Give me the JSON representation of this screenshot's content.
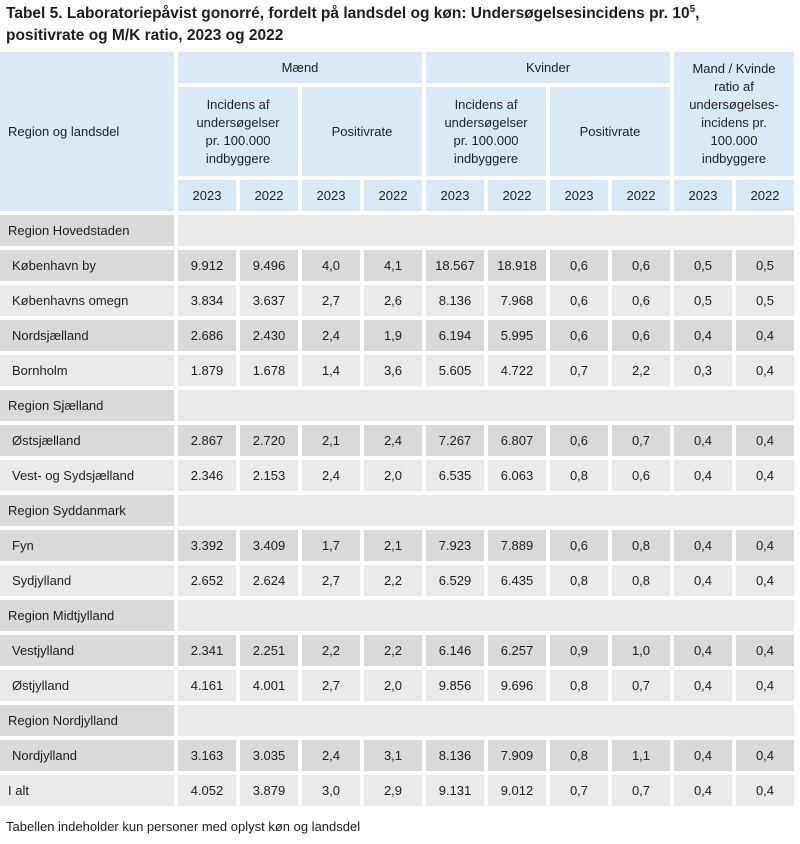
{
  "title_main": "Tabel 5. Laboratoriepåvist gonorré, fordelt på landsdel og køn: Undersøgelsesincidens pr. 10",
  "title_sup": "5",
  "title_rest": ",",
  "title_line2": "positivrate og M/K ratio, 2023 og 2022",
  "headers": {
    "region": "Region og landsdel",
    "maend": "Mænd",
    "kvinder": "Kvinder",
    "ratio": "Mand / Kvinde ratio af undersøgelses-incidens pr. 100.000 indbyggere",
    "incidens": "Incidens af undersøgelser pr. 100.000 indbyggere",
    "positivrate": "Positivrate",
    "years": [
      "2023",
      "2022",
      "2023",
      "2022",
      "2023",
      "2022",
      "2023",
      "2022",
      "2023",
      "2022"
    ]
  },
  "rows": [
    {
      "type": "region",
      "label": "Region Hovedstaden"
    },
    {
      "type": "data",
      "shade": "g",
      "label": "København by",
      "v": [
        "9.912",
        "9.496",
        "4,0",
        "4,1",
        "18.567",
        "18.918",
        "0,6",
        "0,6",
        "0,5",
        "0,5"
      ]
    },
    {
      "type": "data",
      "shade": "w",
      "label": "Københavns omegn",
      "v": [
        "3.834",
        "3.637",
        "2,7",
        "2,6",
        "8.136",
        "7.968",
        "0,6",
        "0,6",
        "0,5",
        "0,5"
      ]
    },
    {
      "type": "data",
      "shade": "g",
      "label": "Nordsjælland",
      "v": [
        "2.686",
        "2.430",
        "2,4",
        "1,9",
        "6.194",
        "5.995",
        "0,6",
        "0,6",
        "0,4",
        "0,4"
      ]
    },
    {
      "type": "data",
      "shade": "w",
      "label": "Bornholm",
      "v": [
        "1.879",
        "1.678",
        "1,4",
        "3,6",
        "5.605",
        "4.722",
        "0,7",
        "2,2",
        "0,3",
        "0,4"
      ]
    },
    {
      "type": "region",
      "label": "Region Sjælland"
    },
    {
      "type": "data",
      "shade": "g",
      "label": "Østsjælland",
      "v": [
        "2.867",
        "2.720",
        "2,1",
        "2,4",
        "7.267",
        "6.807",
        "0,6",
        "0,7",
        "0,4",
        "0,4"
      ]
    },
    {
      "type": "data",
      "shade": "w",
      "label": "Vest- og Sydsjælland",
      "v": [
        "2.346",
        "2.153",
        "2,4",
        "2,0",
        "6.535",
        "6.063",
        "0,8",
        "0,6",
        "0,4",
        "0,4"
      ]
    },
    {
      "type": "region",
      "label": "Region Syddanmark"
    },
    {
      "type": "data",
      "shade": "g",
      "label": "Fyn",
      "v": [
        "3.392",
        "3.409",
        "1,7",
        "2,1",
        "7.923",
        "7.889",
        "0,6",
        "0,8",
        "0,4",
        "0,4"
      ]
    },
    {
      "type": "data",
      "shade": "w",
      "label": "Sydjylland",
      "v": [
        "2.652",
        "2.624",
        "2,7",
        "2,2",
        "6.529",
        "6.435",
        "0,8",
        "0,8",
        "0,4",
        "0,4"
      ]
    },
    {
      "type": "region",
      "label": "Region Midtjylland"
    },
    {
      "type": "data",
      "shade": "g",
      "label": "Vestjylland",
      "v": [
        "2.341",
        "2.251",
        "2,2",
        "2,2",
        "6.146",
        "6.257",
        "0,9",
        "1,0",
        "0,4",
        "0,4"
      ]
    },
    {
      "type": "data",
      "shade": "w",
      "label": "Østjylland",
      "v": [
        "4.161",
        "4.001",
        "2,7",
        "2,0",
        "9.856",
        "9.696",
        "0,8",
        "0,7",
        "0,4",
        "0,4"
      ]
    },
    {
      "type": "region",
      "label": "Region Nordjylland"
    },
    {
      "type": "data",
      "shade": "g",
      "label": "Nordjylland",
      "v": [
        "3.163",
        "3.035",
        "2,4",
        "3,1",
        "8.136",
        "7.909",
        "0,8",
        "1,1",
        "0,4",
        "0,4"
      ]
    },
    {
      "type": "data",
      "shade": "w",
      "label": "I alt",
      "v": [
        "4.052",
        "3.879",
        "3,0",
        "2,9",
        "9.131",
        "9.012",
        "0,7",
        "0,7",
        "0,4",
        "0,4"
      ],
      "total": true
    }
  ],
  "footnote": "Tabellen indeholder kun personer med oplyst køn og landsdel"
}
